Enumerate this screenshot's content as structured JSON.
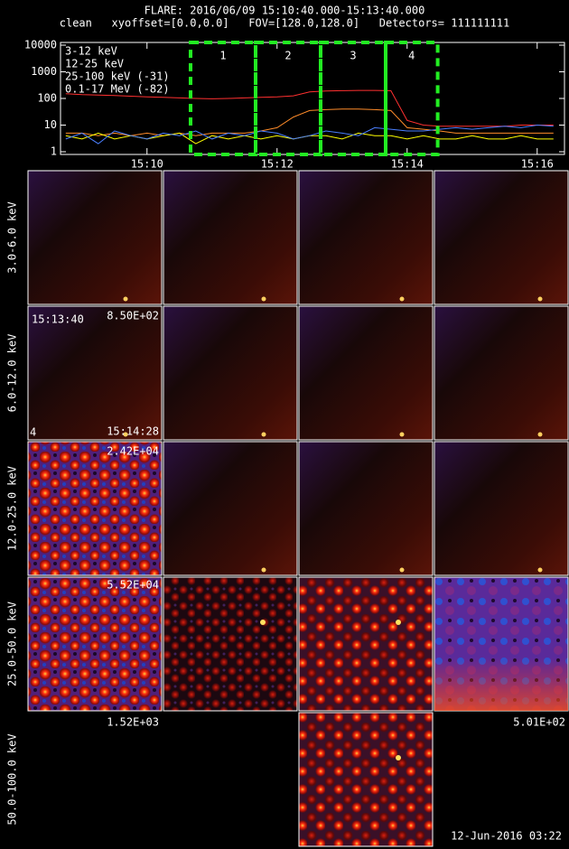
{
  "header": {
    "title": "FLARE: 2016/06/09 15:10:40.000-15:13:40.000",
    "subtitle": "clean   xyoffset=[0.0,0.0]   FOV=[128.0,128.0]   Detectors= 111111111"
  },
  "chart_data": {
    "type": "line",
    "log_y": true,
    "legend": "top-left",
    "x": [
      908.75,
      909.0,
      909.25,
      909.5,
      909.75,
      910.0,
      910.25,
      910.5,
      910.75,
      911.0,
      911.25,
      911.5,
      911.75,
      912.0,
      912.25,
      912.5,
      912.75,
      913.0,
      913.25,
      913.5,
      913.75,
      914.0,
      914.25,
      914.5,
      914.75,
      915.0,
      915.25,
      915.5,
      915.75,
      916.0,
      916.25
    ],
    "xlim": [
      908.67,
      916.42
    ],
    "xticks": [
      {
        "value": 910,
        "label": "15:10"
      },
      {
        "value": 912,
        "label": "15:12"
      },
      {
        "value": 914,
        "label": "15:14"
      },
      {
        "value": 916,
        "label": "15:16"
      }
    ],
    "ylim": [
      1,
      10000
    ],
    "yticks": [
      1,
      10,
      100,
      1000,
      10000
    ],
    "series": [
      {
        "name": "3-12 keV",
        "color": "#ff3030",
        "values": [
          150,
          140,
          135,
          128,
          122,
          115,
          110,
          105,
          100,
          97,
          100,
          105,
          110,
          115,
          125,
          175,
          190,
          195,
          200,
          200,
          195,
          15,
          10,
          9,
          9,
          9,
          9,
          9,
          10,
          10,
          10
        ]
      },
      {
        "name": "12-25 keV",
        "color": "#ff8c2a",
        "values": [
          5,
          5,
          4,
          5,
          4,
          5,
          4,
          5,
          4,
          5,
          5,
          5,
          6,
          8,
          20,
          35,
          38,
          40,
          40,
          38,
          35,
          8,
          7,
          6,
          5,
          5,
          5,
          5,
          5,
          5,
          5
        ]
      },
      {
        "name": "25-100 keV (-31)",
        "color": "#ffff00",
        "values": [
          4,
          3,
          5,
          3,
          4,
          3,
          4,
          5,
          2,
          4,
          3,
          4,
          3,
          4,
          3,
          4,
          4,
          3,
          5,
          4,
          4,
          3,
          4,
          3,
          3,
          4,
          3,
          3,
          4,
          3,
          3
        ]
      },
      {
        "name": "0.1-17 MeV (-82)",
        "color": "#4a7fff",
        "values": [
          3,
          5,
          2,
          6,
          4,
          3,
          5,
          4,
          6,
          3,
          5,
          4,
          6,
          5,
          3,
          4,
          6,
          5,
          4,
          8,
          7,
          6,
          6,
          7,
          8,
          7,
          8,
          9,
          8,
          10,
          9
        ]
      }
    ],
    "intervals": [
      {
        "label": "1",
        "start": 910.67,
        "end": 911.67
      },
      {
        "label": "2",
        "start": 911.67,
        "end": 912.67
      },
      {
        "label": "3",
        "start": 912.67,
        "end": 913.67
      },
      {
        "label": "4",
        "start": 913.67,
        "end": 914.47
      }
    ],
    "interval_color": "#22ee22"
  },
  "image_grid": {
    "row_labels": [
      "3.0-6.0 keV",
      "6.0-12.0 keV",
      "12.0-25.0 keV",
      "25.0-50.0 keV",
      "50.0-100.0 keV"
    ],
    "panel_texts": [
      "15:13:40",
      "8.50E+02",
      "4",
      "15:14:28",
      "2.42E+04",
      "5.52E+04",
      "1.52E+03",
      "5.01E+02"
    ]
  },
  "footer": {
    "timestamp": "12-Jun-2016 03:22"
  }
}
